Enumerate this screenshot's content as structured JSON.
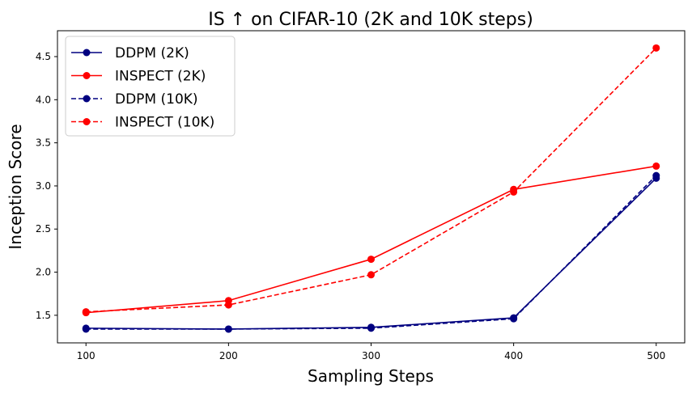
{
  "chart_data": {
    "type": "line",
    "title": "IS ↑  on CIFAR-10 (2K and 10K steps)",
    "xlabel": "Sampling Steps",
    "ylabel": "Inception Score",
    "x": [
      100,
      200,
      300,
      400,
      500
    ],
    "xlim": [
      80,
      520
    ],
    "ylim": [
      1.18,
      4.8
    ],
    "xticks": [
      100,
      200,
      300,
      400,
      500
    ],
    "yticks": [
      1.5,
      2.0,
      2.5,
      3.0,
      3.5,
      4.0,
      4.5
    ],
    "ytick_labels": [
      "1.5",
      "2.0",
      "2.5",
      "3.0",
      "3.5",
      "4.0",
      "4.5"
    ],
    "legend_position": "top-left",
    "grid": false,
    "series": [
      {
        "name": "DDPM (2K)",
        "values": [
          1.35,
          1.34,
          1.36,
          1.47,
          3.09
        ],
        "color": "#000080",
        "linestyle": "solid"
      },
      {
        "name": "INSPECT (2K)",
        "values": [
          1.53,
          1.67,
          2.15,
          2.96,
          3.23
        ],
        "color": "#ff0000",
        "linestyle": "solid"
      },
      {
        "name": "DDPM (10K)",
        "values": [
          1.34,
          1.34,
          1.35,
          1.46,
          3.12
        ],
        "color": "#000080",
        "linestyle": "dashed"
      },
      {
        "name": "INSPECT (10K)",
        "values": [
          1.54,
          1.62,
          1.97,
          2.93,
          4.6
        ],
        "color": "#ff0000",
        "linestyle": "dashed"
      }
    ]
  }
}
